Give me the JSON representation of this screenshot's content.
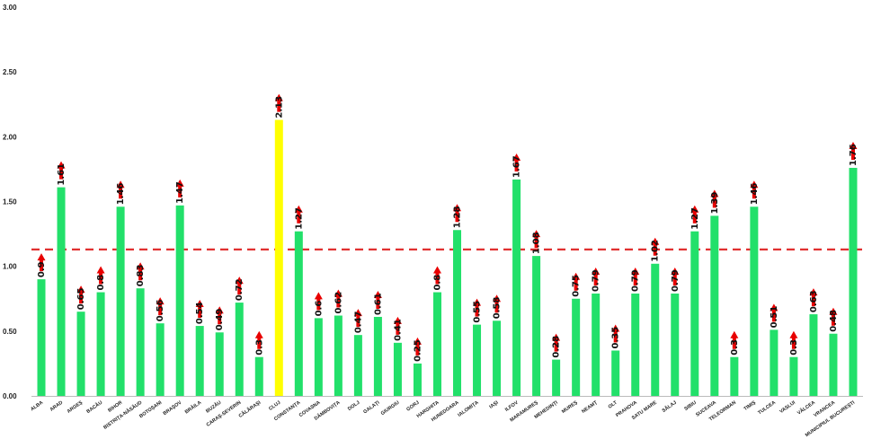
{
  "colors": {
    "bar": "#22e06a",
    "highlight_bar": "#ffff00",
    "arrow": "#e80000",
    "reference_line": "#e03030"
  },
  "chart_data": {
    "type": "bar",
    "title": "",
    "xlabel": "",
    "ylabel": "",
    "ylim": [
      0,
      3
    ],
    "yticks": [
      "0.00",
      "0.50",
      "1.00",
      "1.50",
      "2.00",
      "2.50",
      "3.00"
    ],
    "grid": false,
    "legend": "none",
    "reference_line_value": 1.13,
    "highlight_category": "CLUJ",
    "marker": "up-arrow",
    "categories": [
      "ALBA",
      "ARAD",
      "ARGEȘ",
      "BACĂU",
      "BIHOR",
      "BISTRIȚA-NĂSĂUD",
      "BOTOȘANI",
      "BRAȘOV",
      "BRĂILA",
      "BUZĂU",
      "CARAȘ-SEVERIN",
      "CĂLĂRAȘI",
      "CLUJ",
      "CONSTANȚA",
      "COVASNA",
      "DÂMBOVIȚA",
      "DOLJ",
      "GALAȚI",
      "GIURGIU",
      "GORJ",
      "HARGHITA",
      "HUNEDOARA",
      "IALOMIȚA",
      "IAȘI",
      "ILFOV",
      "MARAMUREȘ",
      "MEHEDINȚI",
      "MUREȘ",
      "NEAMȚ",
      "OLT",
      "PRAHOVA",
      "SATU MARE",
      "SĂLAJ",
      "SIBIU",
      "SUCEAVA",
      "TELEORMAN",
      "TIMIȘ",
      "TULCEA",
      "VASLUI",
      "VÂLCEA",
      "VRANCEA",
      "MUNICIPIUL BUCUREȘTI"
    ],
    "values": [
      0.9,
      1.61,
      0.65,
      0.8,
      1.46,
      0.83,
      0.56,
      1.47,
      0.54,
      0.49,
      0.72,
      0.3,
      2.13,
      1.27,
      0.6,
      0.62,
      0.47,
      0.61,
      0.41,
      0.25,
      0.8,
      1.28,
      0.55,
      0.58,
      1.67,
      1.08,
      0.28,
      0.75,
      0.79,
      0.35,
      0.79,
      1.02,
      0.79,
      1.27,
      1.39,
      0.3,
      1.46,
      0.51,
      0.3,
      0.63,
      0.48,
      1.76
    ],
    "data_labels": [
      "0.9",
      "1.61",
      "0.65",
      "0.8",
      "1.46",
      "0.83",
      "0.56",
      "1.47",
      "0.54",
      "0.49",
      "0.72",
      "0.3",
      "2.13",
      "1.27",
      "0.6",
      "0.62",
      "0.47",
      "0.61",
      "0.41",
      "0.25",
      "0.8",
      "1.28",
      "0.55",
      "0.58",
      "1.67",
      "1.08",
      "0.28",
      "0.75",
      "0.79",
      "0.35",
      "0.79",
      "1.02",
      "0.79",
      "1.27",
      "1.39",
      "0.3",
      "1.46",
      "0.51",
      "0.3",
      "0.63",
      "0.48",
      "1.76"
    ]
  }
}
